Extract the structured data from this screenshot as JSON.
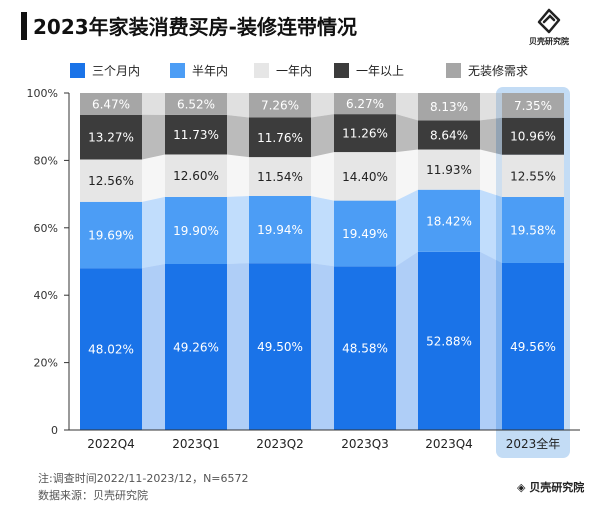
{
  "title": "2023年家装消费买房-装修连带情况",
  "brand": "贝壳研究院",
  "chart_data": {
    "type": "bar",
    "stacked": true,
    "categories": [
      "2022Q4",
      "2023Q1",
      "2023Q2",
      "2023Q3",
      "2023Q4",
      "2023全年"
    ],
    "series": [
      {
        "name": "三个月内",
        "color": "#1a73e8",
        "values": [
          48.02,
          49.26,
          49.5,
          48.58,
          52.88,
          49.56
        ],
        "labels": [
          "48.02%",
          "49.26%",
          "49.50%",
          "48.58%",
          "52.88%",
          "49.56%"
        ]
      },
      {
        "name": "半年内",
        "color": "#4c9df5",
        "values": [
          19.69,
          19.9,
          19.94,
          19.49,
          18.42,
          19.58
        ],
        "labels": [
          "19.69%",
          "19.90%",
          "19.94%",
          "19.49%",
          "18.42%",
          "19.58%"
        ]
      },
      {
        "name": "一年内",
        "color": "#e6e6e6",
        "values": [
          12.56,
          12.6,
          11.54,
          14.4,
          11.93,
          12.55
        ],
        "labels": [
          "12.56%",
          "12.60%",
          "11.54%",
          "14.40%",
          "11.93%",
          "12.55%"
        ]
      },
      {
        "name": "一年以上",
        "color": "#3c3c3c",
        "values": [
          13.27,
          11.73,
          11.76,
          11.26,
          8.64,
          10.96
        ],
        "labels": [
          "13.27%",
          "11.73%",
          "11.76%",
          "11.26%",
          "8.64%",
          "10.96%"
        ]
      },
      {
        "name": "无装修需求",
        "color": "#a6a6a6",
        "values": [
          6.47,
          6.52,
          7.26,
          6.27,
          8.13,
          7.35
        ],
        "labels": [
          "6.47%",
          "6.52%",
          "7.26%",
          "6.27%",
          "8.13%",
          "7.35%"
        ]
      }
    ],
    "y_ticks": [
      "0",
      "20%",
      "40%",
      "60%",
      "80%",
      "100%"
    ],
    "ylim": [
      0,
      100
    ],
    "highlight_category": "2023全年",
    "grid": false,
    "legend_position": "top"
  },
  "notes": {
    "line1": "注:调查时间2022/11-2023/12，N=6572",
    "line2": "数据来源：贝壳研究院"
  }
}
